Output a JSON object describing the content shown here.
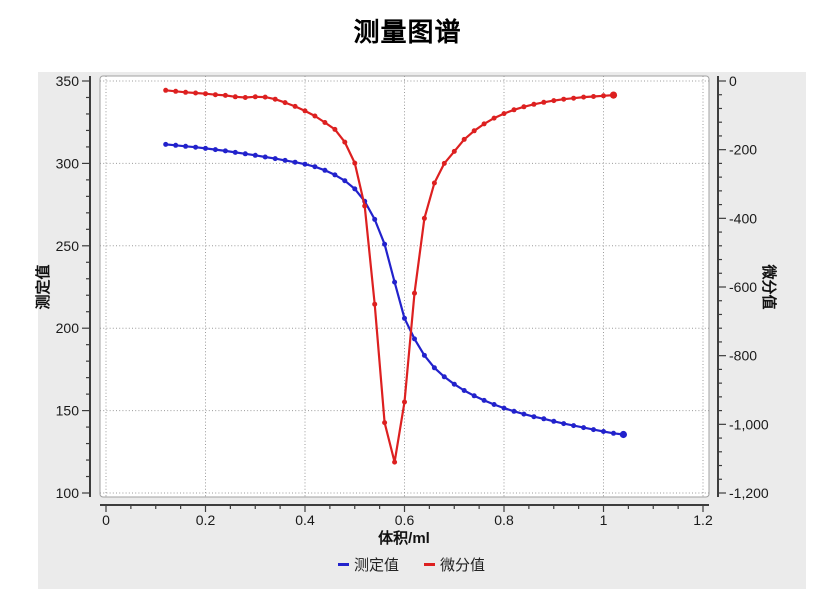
{
  "title": "测量图谱",
  "colors": {
    "panel_background": "#ebebeb",
    "canvas_background": "#ffffff",
    "canvas_border": "#a0a0a0",
    "grid": "#9b9b9b",
    "axis": "#3c3c3c",
    "tick_label": "#1a1a1a",
    "measured_series": "#2222cc",
    "derivative_series": "#dd2020"
  },
  "chart_data": {
    "type": "line",
    "title": "测量图谱",
    "xlabel": "体积/ml",
    "ylabel_left": "测定值",
    "ylabel_right": "微分值",
    "xlim": [
      0,
      1.2
    ],
    "x_ticks": [
      0,
      0.2,
      0.4,
      0.6,
      0.8,
      1,
      1.2
    ],
    "x_tick_labels": [
      "0",
      "0.2",
      "0.4",
      "0.6",
      "0.8",
      "1",
      "1.2"
    ],
    "x_minor_step": 0.05,
    "ylim_left": [
      100,
      350
    ],
    "y_ticks_left": [
      350,
      300,
      250,
      200,
      150,
      100
    ],
    "y_tick_labels_left": [
      "350",
      "300",
      "250",
      "200",
      "150",
      "100"
    ],
    "y_left_minor_step": 10,
    "ylim_right": [
      -1200,
      0
    ],
    "y_ticks_right": [
      0,
      -200,
      -400,
      -600,
      -800,
      -1000,
      -1200
    ],
    "y_tick_labels_right": [
      "0",
      "-200",
      "-400",
      "-600",
      "-800",
      "-1,000",
      "-1,200"
    ],
    "y_right_minor_step": 40,
    "grid": true,
    "legend_position": "bottom",
    "series": [
      {
        "name": "测定值",
        "id": "measured",
        "axis": "left",
        "color": "#2222cc",
        "x": [
          0.12,
          0.14,
          0.16,
          0.18,
          0.2,
          0.22,
          0.24,
          0.26,
          0.28,
          0.3,
          0.32,
          0.34,
          0.36,
          0.38,
          0.4,
          0.42,
          0.44,
          0.46,
          0.48,
          0.5,
          0.52,
          0.54,
          0.56,
          0.58,
          0.6,
          0.62,
          0.64,
          0.66,
          0.68,
          0.7,
          0.72,
          0.74,
          0.76,
          0.78,
          0.8,
          0.82,
          0.84,
          0.86,
          0.88,
          0.9,
          0.92,
          0.94,
          0.96,
          0.98,
          1.0,
          1.02,
          1.04
        ],
        "values": [
          311.5,
          311.0,
          310.4,
          309.8,
          309.1,
          308.4,
          307.6,
          306.7,
          305.8,
          304.9,
          303.9,
          302.9,
          301.8,
          300.7,
          299.5,
          298.0,
          295.8,
          293.0,
          289.5,
          284.5,
          277.0,
          266.0,
          251.0,
          228.0,
          206.0,
          193.5,
          183.5,
          176.0,
          170.5,
          166.0,
          162.2,
          159.0,
          156.2,
          153.7,
          151.5,
          149.6,
          147.9,
          146.3,
          145.0,
          143.5,
          142.1,
          140.9,
          139.7,
          138.5,
          137.3,
          136.2,
          135.5
        ]
      },
      {
        "name": "微分值",
        "id": "derivative",
        "axis": "right",
        "color": "#dd2020",
        "x": [
          0.12,
          0.14,
          0.16,
          0.18,
          0.2,
          0.22,
          0.24,
          0.26,
          0.28,
          0.3,
          0.32,
          0.34,
          0.36,
          0.38,
          0.4,
          0.42,
          0.44,
          0.46,
          0.48,
          0.5,
          0.52,
          0.54,
          0.56,
          0.58,
          0.6,
          0.62,
          0.64,
          0.66,
          0.68,
          0.7,
          0.72,
          0.74,
          0.76,
          0.78,
          0.8,
          0.82,
          0.84,
          0.86,
          0.88,
          0.9,
          0.92,
          0.94,
          0.96,
          0.98,
          1.0,
          1.02
        ],
        "values": [
          -27,
          -30,
          -33,
          -35,
          -37,
          -40,
          -42,
          -46,
          -48,
          -46,
          -47,
          -53,
          -63,
          -74,
          -87,
          -102,
          -121,
          -141,
          -178,
          -239,
          -364,
          -650,
          -995,
          -1110,
          -935,
          -618,
          -400,
          -297,
          -240,
          -205,
          -170,
          -145,
          -125,
          -108,
          -95,
          -84,
          -75,
          -68,
          -62,
          -57,
          -53,
          -50,
          -47,
          -45,
          -43,
          -41
        ]
      }
    ]
  }
}
